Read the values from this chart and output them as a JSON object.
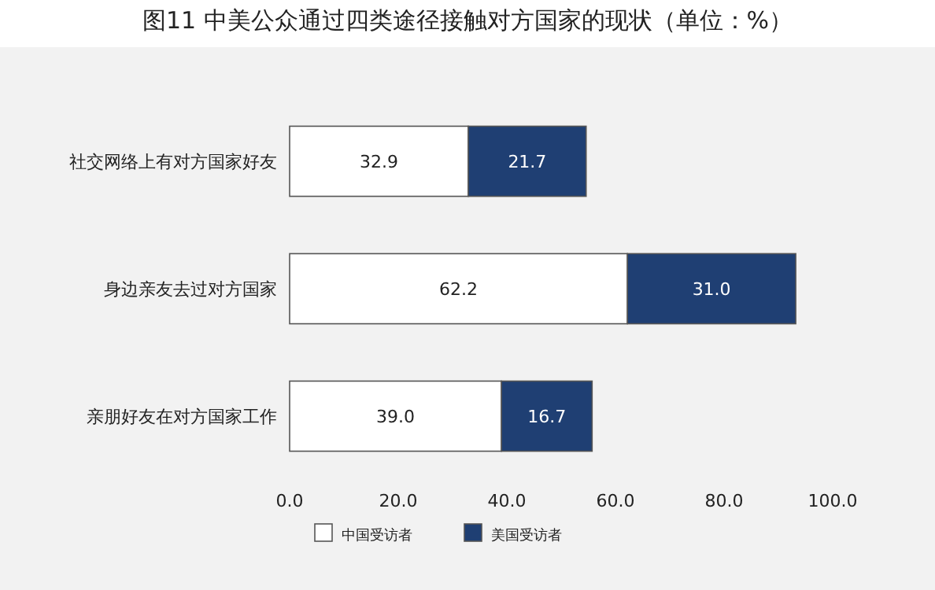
{
  "chart_data": {
    "type": "bar",
    "title": "图11  中美公众通过四类途径接触对方国家的现状（单位：%）",
    "orientation": "horizontal",
    "stacked": true,
    "categories": [
      "社交网络上有对方国家好友",
      "身边亲友去过对方国家",
      "亲朋好友在对方国家工作"
    ],
    "series": [
      {
        "name": "中国受访者",
        "color": "#ffffff",
        "values": [
          32.9,
          62.2,
          39.0
        ],
        "value_labels": [
          "32.9",
          "62.2",
          "39.0"
        ]
      },
      {
        "name": "美国受访者",
        "color": "#1f3f73",
        "values": [
          21.7,
          31.0,
          16.7
        ],
        "value_labels": [
          "21.7",
          "31.0",
          "16.7"
        ]
      }
    ],
    "xlim": [
      0,
      100
    ],
    "xticks": [
      {
        "value": 0,
        "label": "0.0"
      },
      {
        "value": 20,
        "label": "20.0"
      },
      {
        "value": 40,
        "label": "40.0"
      },
      {
        "value": 60,
        "label": "60.0"
      },
      {
        "value": 80,
        "label": "80.0"
      },
      {
        "value": 100,
        "label": "100.0"
      }
    ],
    "legend": "bottom",
    "grid": false
  }
}
